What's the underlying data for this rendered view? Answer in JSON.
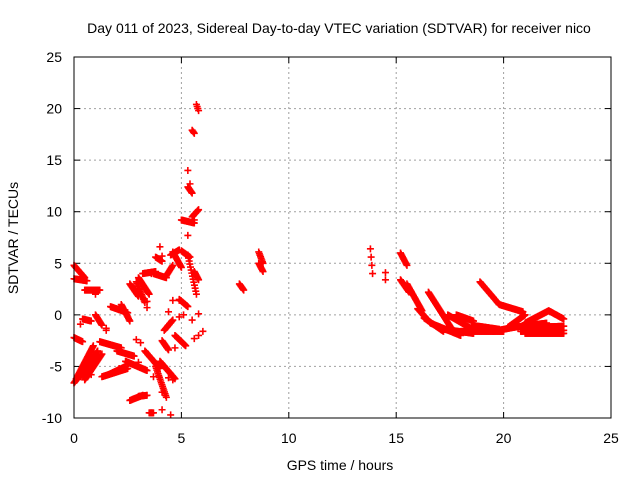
{
  "chart_data": {
    "type": "scatter",
    "title": "Day 011 of 2023, Sidereal Day-to-day VTEC variation (SDTVAR) for receiver nico",
    "xlabel": "GPS time / hours",
    "ylabel": "SDTVAR / TECUs",
    "xlim": [
      0,
      25
    ],
    "ylim": [
      -10,
      25
    ],
    "xticks": [
      "0",
      "5",
      "10",
      "15",
      "20",
      "25"
    ],
    "yticks": [
      "-10",
      "-5",
      "0",
      "5",
      "10",
      "15",
      "20",
      "25"
    ],
    "grid": true,
    "marker": "+",
    "series": [
      {
        "name": "SDTVAR",
        "color": "#ff0000",
        "tracks": [
          {
            "t0": 0.0,
            "t1": 0.5,
            "v0": 4.8,
            "v1": 3.6
          },
          {
            "t0": 0.0,
            "t1": 0.6,
            "v0": 3.5,
            "v1": 3.3
          },
          {
            "t0": 0.0,
            "t1": 0.4,
            "v0": -2.2,
            "v1": -2.6
          },
          {
            "t0": 0.0,
            "t1": 0.6,
            "v0": -6.6,
            "v1": -5.0
          },
          {
            "t0": 0.1,
            "t1": 0.9,
            "v0": -6.2,
            "v1": -3.0
          },
          {
            "t0": 0.3,
            "t1": 1.1,
            "v0": -6.0,
            "v1": -3.5
          },
          {
            "t0": 0.5,
            "t1": 1.3,
            "v0": -6.3,
            "v1": -3.8
          },
          {
            "t0": 0.5,
            "t1": 1.2,
            "v0": 2.4,
            "v1": 2.4
          },
          {
            "t0": 0.4,
            "t1": 0.8,
            "v0": -0.4,
            "v1": -0.6
          },
          {
            "t0": 1.0,
            "t1": 1.3,
            "v0": 0.0,
            "v1": -1.0
          },
          {
            "t0": 1.2,
            "t1": 2.2,
            "v0": -2.6,
            "v1": -3.2
          },
          {
            "t0": 1.3,
            "t1": 2.5,
            "v0": -6.0,
            "v1": -5.2
          },
          {
            "t0": 1.6,
            "t1": 2.4,
            "v0": -5.8,
            "v1": -5.0
          },
          {
            "t0": 2.0,
            "t1": 2.8,
            "v0": -3.5,
            "v1": -4.0
          },
          {
            "t0": 1.7,
            "t1": 2.5,
            "v0": 0.8,
            "v1": 0.2
          },
          {
            "t0": 2.2,
            "t1": 2.6,
            "v0": 1.0,
            "v1": -0.6
          },
          {
            "t0": 2.6,
            "t1": 3.0,
            "v0": 3.0,
            "v1": 1.8
          },
          {
            "t0": 2.9,
            "t1": 3.3,
            "v0": 3.2,
            "v1": 1.2
          },
          {
            "t0": 3.0,
            "t1": 3.5,
            "v0": 3.6,
            "v1": 2.0
          },
          {
            "t0": 3.2,
            "t1": 3.8,
            "v0": 4.0,
            "v1": 4.2
          },
          {
            "t0": 3.7,
            "t1": 4.3,
            "v0": 4.0,
            "v1": 3.6
          },
          {
            "t0": 3.8,
            "t1": 4.1,
            "v0": 5.6,
            "v1": 5.2
          },
          {
            "t0": 2.4,
            "t1": 3.4,
            "v0": -4.5,
            "v1": -5.4
          },
          {
            "t0": 2.6,
            "t1": 3.2,
            "v0": -8.3,
            "v1": -7.8
          },
          {
            "t0": 3.0,
            "t1": 3.4,
            "v0": -7.9,
            "v1": -7.8
          },
          {
            "t0": 3.5,
            "t1": 3.7,
            "v0": -9.5,
            "v1": -9.5
          },
          {
            "t0": 3.3,
            "t1": 4.0,
            "v0": -3.5,
            "v1": -5.2
          },
          {
            "t0": 3.8,
            "t1": 4.3,
            "v0": -5.0,
            "v1": -8.0
          },
          {
            "t0": 4.0,
            "t1": 4.7,
            "v0": -4.5,
            "v1": -6.2
          },
          {
            "t0": 4.1,
            "t1": 4.4,
            "v0": -2.5,
            "v1": -3.4
          },
          {
            "t0": 4.2,
            "t1": 4.6,
            "v0": -1.5,
            "v1": -0.5
          },
          {
            "t0": 4.3,
            "t1": 4.6,
            "v0": 3.8,
            "v1": 4.8
          },
          {
            "t0": 4.5,
            "t1": 4.9,
            "v0": 5.8,
            "v1": 6.3
          },
          {
            "t0": 4.6,
            "t1": 5.0,
            "v0": 6.1,
            "v1": 4.6
          },
          {
            "t0": 4.7,
            "t1": 5.2,
            "v0": -2.0,
            "v1": -3.0
          },
          {
            "t0": 4.9,
            "t1": 5.3,
            "v0": 1.5,
            "v1": 0.8
          },
          {
            "t0": 5.0,
            "t1": 5.4,
            "v0": 6.2,
            "v1": 5.6
          },
          {
            "t0": 5.0,
            "t1": 5.6,
            "v0": 9.2,
            "v1": 8.9
          },
          {
            "t0": 5.3,
            "t1": 5.5,
            "v0": 12.4,
            "v1": 11.8
          },
          {
            "t0": 5.5,
            "t1": 5.8,
            "v0": 9.5,
            "v1": 10.2
          },
          {
            "t0": 5.6,
            "t1": 5.8,
            "v0": 4.2,
            "v1": 3.4
          },
          {
            "t0": 5.7,
            "t1": 5.8,
            "v0": 20.4,
            "v1": 19.8
          },
          {
            "t0": 5.5,
            "t1": 5.6,
            "v0": 17.9,
            "v1": 17.6
          },
          {
            "t0": 5.3,
            "t1": 5.7,
            "v0": 5.8,
            "v1": 2.0
          },
          {
            "t0": 7.7,
            "t1": 7.9,
            "v0": 3.0,
            "v1": 2.4
          },
          {
            "t0": 8.6,
            "t1": 8.8,
            "v0": 6.1,
            "v1": 5.0
          },
          {
            "t0": 8.6,
            "t1": 8.8,
            "v0": 5.0,
            "v1": 4.2
          },
          {
            "t0": 13.8,
            "t1": 13.9,
            "v0": 6.4,
            "v1": 4.0
          },
          {
            "t0": 15.2,
            "t1": 15.5,
            "v0": 6.0,
            "v1": 4.8
          },
          {
            "t0": 15.2,
            "t1": 15.6,
            "v0": 3.4,
            "v1": 2.2
          },
          {
            "t0": 15.5,
            "t1": 16.2,
            "v0": 3.0,
            "v1": 0.4
          },
          {
            "t0": 16.0,
            "t1": 16.6,
            "v0": 0.6,
            "v1": -0.8
          },
          {
            "t0": 16.5,
            "t1": 17.6,
            "v0": 2.2,
            "v1": -1.4
          },
          {
            "t0": 16.3,
            "t1": 17.2,
            "v0": -0.3,
            "v1": -1.6
          },
          {
            "t0": 17.2,
            "t1": 18.6,
            "v0": -1.4,
            "v1": -1.8
          },
          {
            "t0": 16.6,
            "t1": 18.0,
            "v0": -0.8,
            "v1": -2.0
          },
          {
            "t0": 17.4,
            "t1": 18.4,
            "v0": 0.0,
            "v1": -1.2
          },
          {
            "t0": 17.8,
            "t1": 18.6,
            "v0": 0.0,
            "v1": -0.6
          },
          {
            "t0": 18.0,
            "t1": 20.0,
            "v0": -1.6,
            "v1": -1.6
          },
          {
            "t0": 18.5,
            "t1": 19.8,
            "v0": -1.0,
            "v1": -1.4
          },
          {
            "t0": 18.9,
            "t1": 19.8,
            "v0": 3.2,
            "v1": 1.0
          },
          {
            "t0": 19.8,
            "t1": 20.9,
            "v0": 1.0,
            "v1": 0.3
          },
          {
            "t0": 19.5,
            "t1": 20.5,
            "v0": -1.6,
            "v1": -1.2
          },
          {
            "t0": 20.2,
            "t1": 21.0,
            "v0": -1.2,
            "v1": 0.0
          },
          {
            "t0": 20.5,
            "t1": 22.0,
            "v0": -1.2,
            "v1": -0.8
          },
          {
            "t0": 21.0,
            "t1": 22.1,
            "v0": -0.8,
            "v1": 0.4
          },
          {
            "t0": 22.1,
            "t1": 22.8,
            "v0": 0.4,
            "v1": -0.4
          },
          {
            "t0": 20.8,
            "t1": 22.8,
            "v0": -1.6,
            "v1": -1.5
          },
          {
            "t0": 21.0,
            "t1": 22.8,
            "v0": -1.8,
            "v1": -1.8
          },
          {
            "t0": 21.5,
            "t1": 22.8,
            "v0": -1.2,
            "v1": -1.1
          }
        ],
        "points": [
          [
            0.3,
            -0.9
          ],
          [
            1.0,
            2.0
          ],
          [
            0.8,
            -5.8
          ],
          [
            2.2,
            -3.6
          ],
          [
            3.6,
            4.0
          ],
          [
            4.0,
            6.6
          ],
          [
            4.1,
            5.7
          ],
          [
            4.4,
            0.3
          ],
          [
            4.1,
            -7.5
          ],
          [
            4.4,
            -6.1
          ],
          [
            4.6,
            -6.3
          ],
          [
            4.9,
            1.4
          ],
          [
            4.9,
            -0.2
          ],
          [
            5.1,
            0.0
          ],
          [
            5.3,
            7.7
          ],
          [
            5.3,
            14.0
          ],
          [
            5.4,
            12.7
          ],
          [
            5.6,
            9.2
          ],
          [
            5.8,
            0.1
          ],
          [
            5.5,
            -0.5
          ],
          [
            5.6,
            -2.3
          ],
          [
            5.8,
            -2.0
          ],
          [
            6.0,
            -1.6
          ],
          [
            3.7,
            -6.0
          ],
          [
            3.6,
            -9.5
          ],
          [
            4.5,
            -9.7
          ],
          [
            4.1,
            -9.2
          ],
          [
            14.5,
            4.1
          ],
          [
            14.5,
            3.4
          ],
          [
            4.6,
            1.4
          ],
          [
            4.7,
            -3.2
          ],
          [
            3.0,
            -4.6
          ],
          [
            3.4,
            0.7
          ],
          [
            3.4,
            1.3
          ],
          [
            2.9,
            -2.4
          ],
          [
            3.1,
            -2.7
          ],
          [
            2.1,
            -5.2
          ],
          [
            1.5,
            -1.5
          ],
          [
            1.5,
            -1.3
          ]
        ]
      }
    ]
  }
}
